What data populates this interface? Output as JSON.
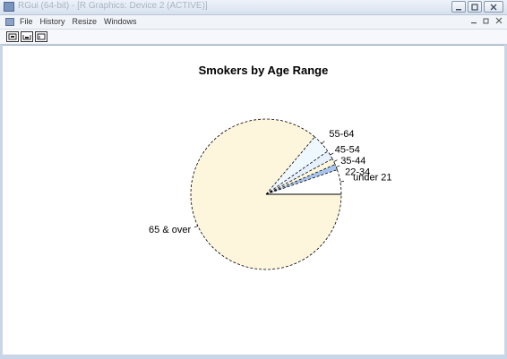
{
  "window": {
    "title": "RGui (64-bit) - [R Graphics: Device 2 (ACTIVE)]",
    "controls": [
      "minimize",
      "maximize",
      "close"
    ]
  },
  "menu": {
    "items": [
      "File",
      "History",
      "Resize",
      "Windows"
    ],
    "right_controls": [
      "minimize",
      "restore",
      "close"
    ]
  },
  "toolbar": {
    "buttons": [
      "copy-metafile-icon",
      "copy-bitmap-icon",
      "print-icon"
    ]
  },
  "colors": {
    "slice_fills": [
      "#ffffff",
      "#a9c4ee",
      "#fff8dc",
      "#e6f0ff",
      "#f0f8ff",
      "#fdf5dc"
    ],
    "border": "#000000"
  },
  "chart_data": {
    "type": "pie",
    "title": "Smokers by Age Range",
    "categories": [
      "under 21",
      "22-34",
      "35-44",
      "45-54",
      "55-64",
      "65 & over"
    ],
    "values": [
      5.3,
      1.2,
      1.3,
      1.9,
      4.1,
      86.2
    ],
    "unit": "percent",
    "start_angle_deg": 0,
    "direction": "counterclockwise",
    "border_style": "dashed"
  }
}
